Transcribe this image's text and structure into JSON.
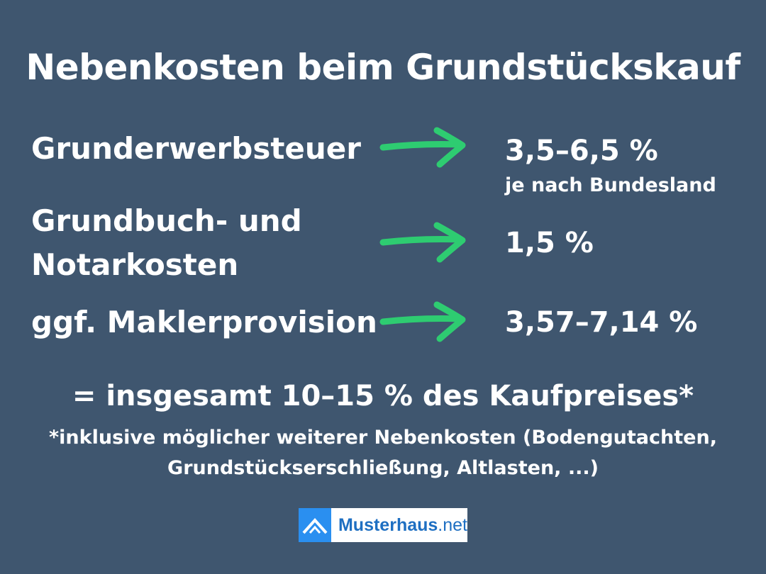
{
  "title": "Nebenkosten beim Grundstückskauf",
  "rows": [
    {
      "label": "Grunderwerbsteuer",
      "value": "3,5–6,5 %",
      "note": "je nach Bundesland"
    },
    {
      "label_line1": "Grundbuch- und",
      "label_line2": "Notarkosten",
      "value": "1,5 %"
    },
    {
      "label": "ggf. Maklerprovision",
      "value": "3,57–7,14 %"
    }
  ],
  "total": "= insgesamt 10–15 % des Kaufpreises*",
  "footnote": {
    "line1": "*inklusive möglicher weiterer Nebenkosten (Bodengutachten,",
    "line2": "Grundstückserschließung, Altlasten, ...)"
  },
  "logo": {
    "brand": "Musterhaus",
    "tld": ".net",
    "icon": "house-roof-icon"
  },
  "colors": {
    "background": "#3f566f",
    "arrow": "#2ecc71",
    "logo_blue": "#2a8ff0",
    "logo_text": "#1e6fc2"
  }
}
